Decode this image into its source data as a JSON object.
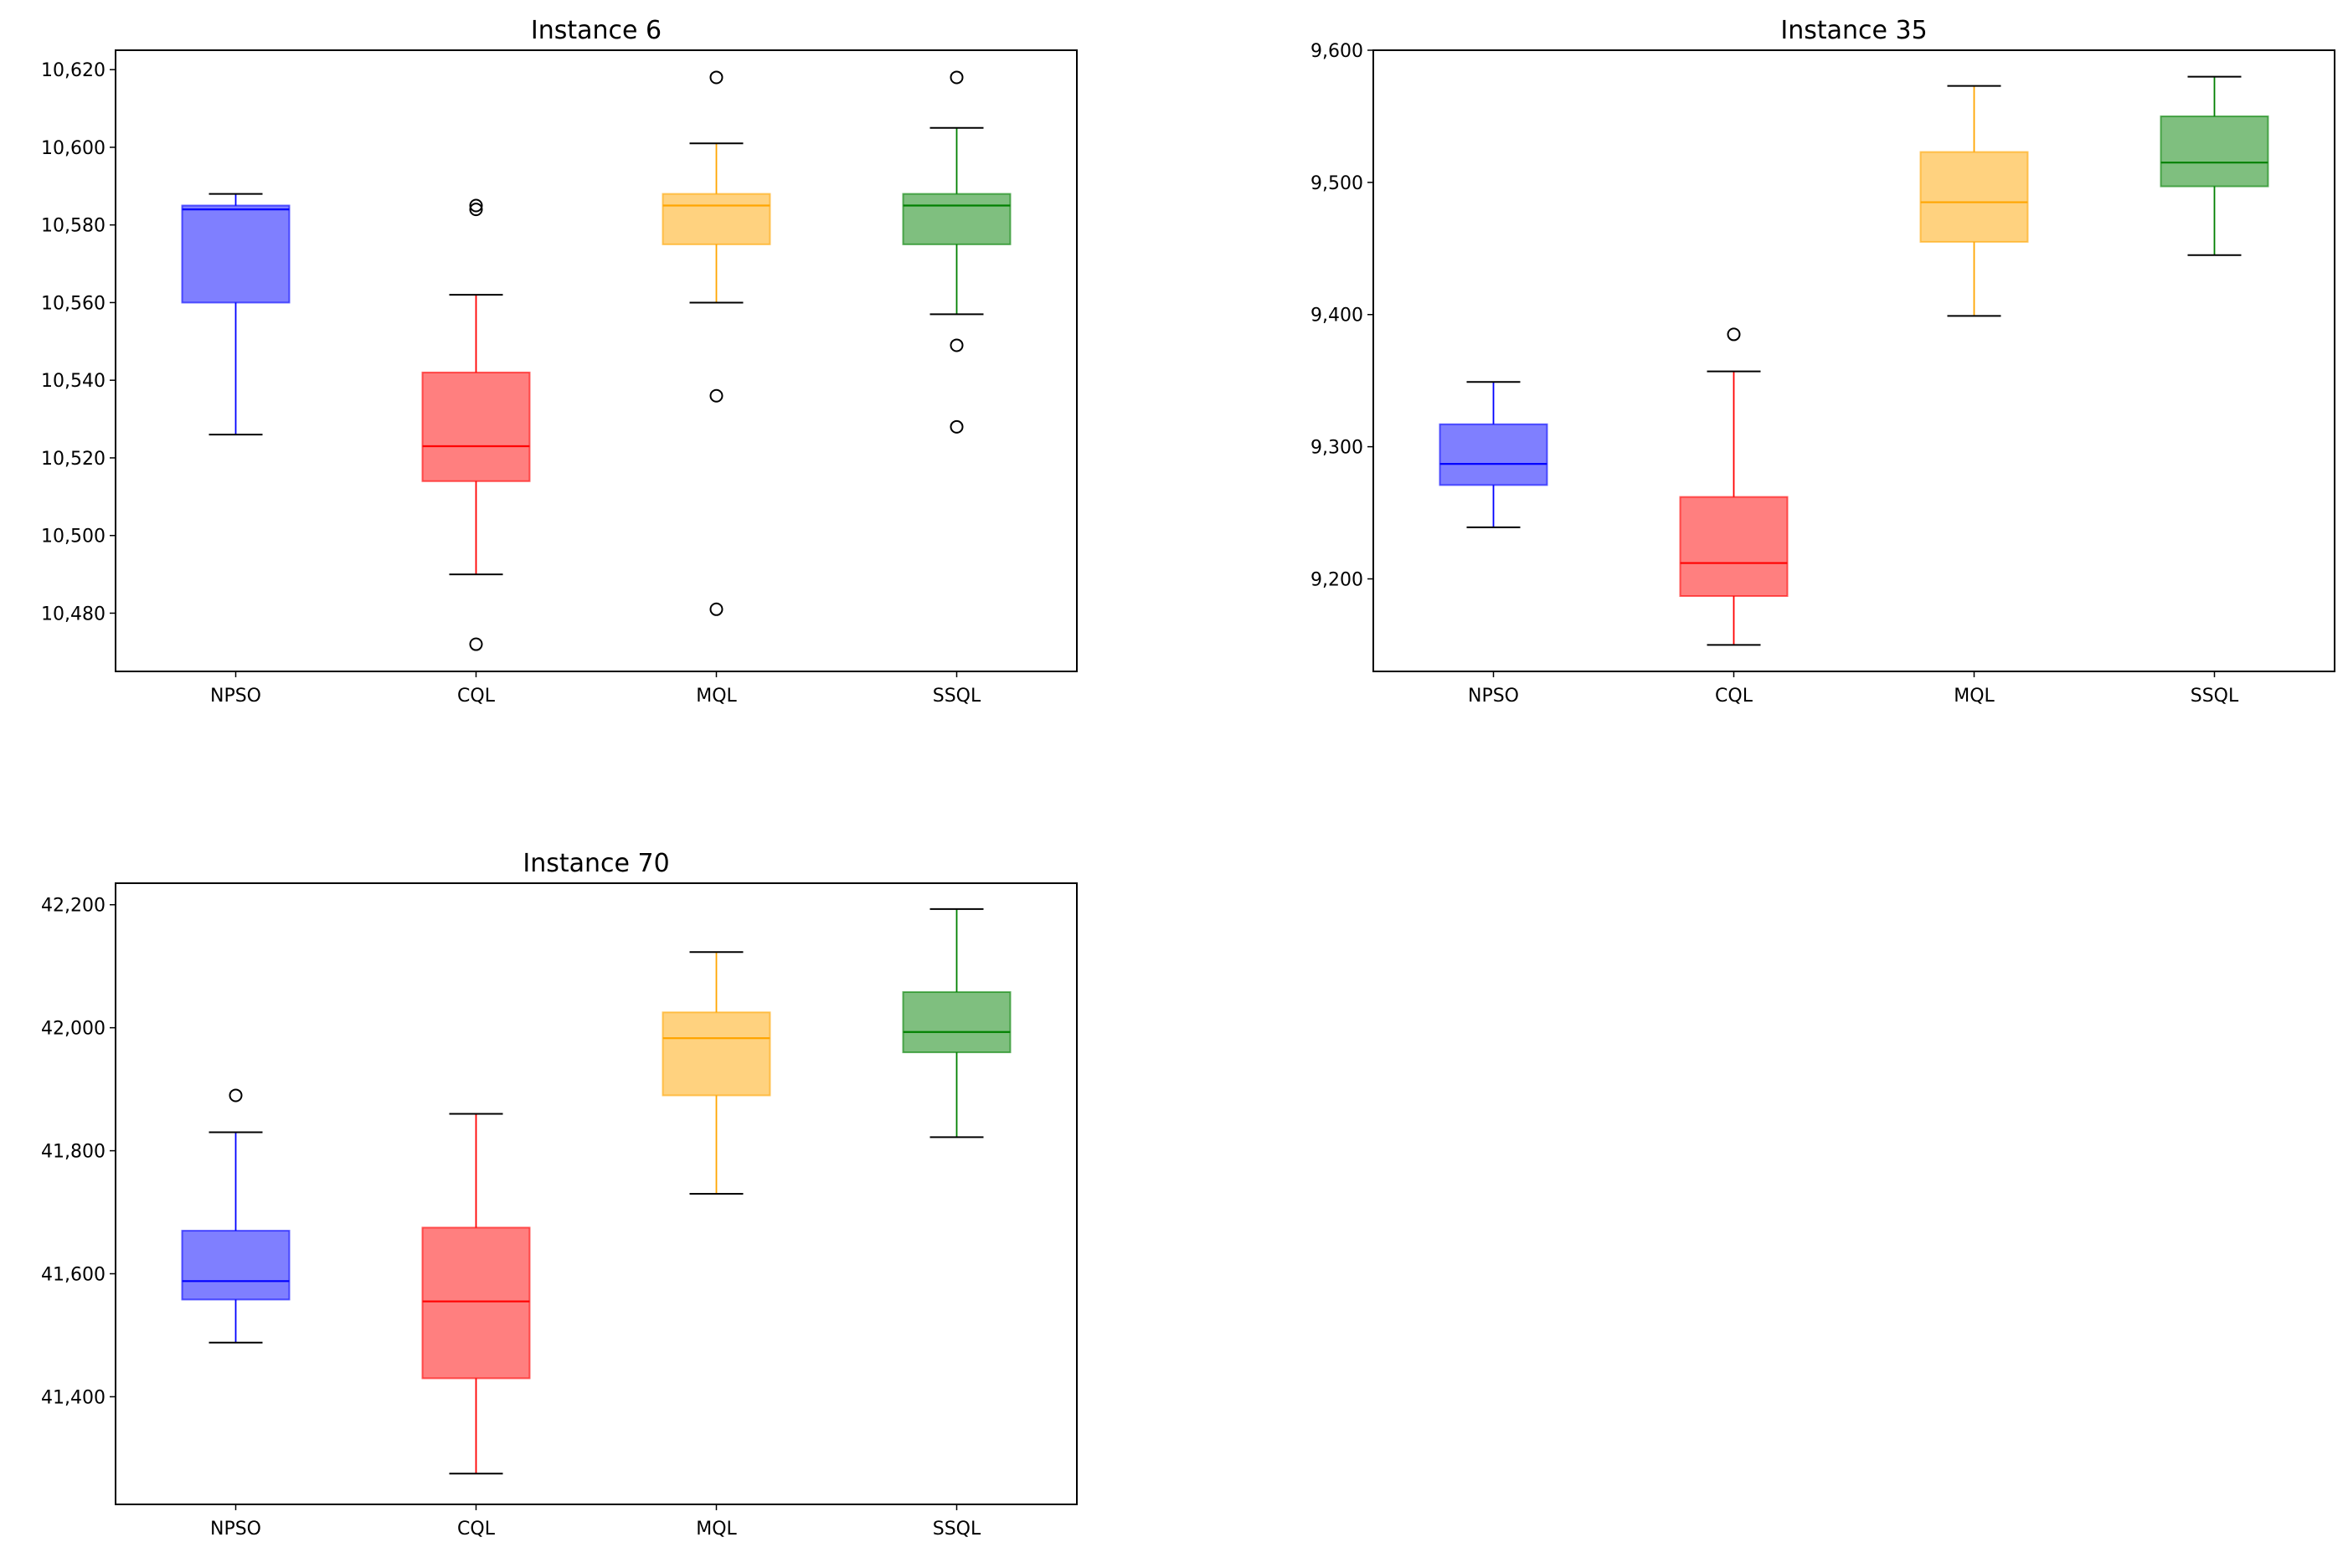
{
  "colors": {
    "NPSO": "#0000ff",
    "CQL": "#ff0000",
    "MQL": "#ffa500",
    "SSQL": "#008000"
  },
  "chart_data": [
    {
      "type": "boxplot",
      "title": "Instance 6",
      "categories": [
        "NPSO",
        "CQL",
        "MQL",
        "SSQL"
      ],
      "ylim": [
        10465,
        10625
      ],
      "yticks": [
        10480,
        10500,
        10520,
        10540,
        10560,
        10580,
        10600,
        10620
      ],
      "ytick_labels": [
        "10,480",
        "10,500",
        "10,520",
        "10,540",
        "10,560",
        "10,580",
        "10,600",
        "10,620"
      ],
      "boxes": [
        {
          "whisker_low": 10526,
          "q1": 10560,
          "median": 10584,
          "q3": 10585,
          "whisker_high": 10588,
          "outliers": []
        },
        {
          "whisker_low": 10490,
          "q1": 10514,
          "median": 10523,
          "q3": 10542,
          "whisker_high": 10562,
          "outliers": [
            10472,
            10584,
            10585
          ]
        },
        {
          "whisker_low": 10560,
          "q1": 10575,
          "median": 10585,
          "q3": 10588,
          "whisker_high": 10601,
          "outliers": [
            10481,
            10536,
            10618
          ]
        },
        {
          "whisker_low": 10557,
          "q1": 10575,
          "median": 10585,
          "q3": 10588,
          "whisker_high": 10605,
          "outliers": [
            10528,
            10549,
            10618
          ]
        }
      ]
    },
    {
      "type": "boxplot",
      "title": "Instance 35",
      "categories": [
        "NPSO",
        "CQL",
        "MQL",
        "SSQL"
      ],
      "ylim": [
        9130,
        9600
      ],
      "yticks": [
        9200,
        9300,
        9400,
        9500,
        9600
      ],
      "ytick_labels": [
        "9,200",
        "9,300",
        "9,400",
        "9,500",
        "9,600"
      ],
      "boxes": [
        {
          "whisker_low": 9239,
          "q1": 9271,
          "median": 9287,
          "q3": 9317,
          "whisker_high": 9349,
          "outliers": []
        },
        {
          "whisker_low": 9150,
          "q1": 9187,
          "median": 9212,
          "q3": 9262,
          "whisker_high": 9357,
          "outliers": [
            9385
          ]
        },
        {
          "whisker_low": 9399,
          "q1": 9455,
          "median": 9485,
          "q3": 9523,
          "whisker_high": 9573,
          "outliers": []
        },
        {
          "whisker_low": 9445,
          "q1": 9497,
          "median": 9515,
          "q3": 9550,
          "whisker_high": 9580,
          "outliers": []
        }
      ]
    },
    {
      "type": "boxplot",
      "title": "Instance 70",
      "categories": [
        "NPSO",
        "CQL",
        "MQL",
        "SSQL"
      ],
      "ylim": [
        41225,
        42235
      ],
      "yticks": [
        41400,
        41600,
        41800,
        42000,
        42200
      ],
      "ytick_labels": [
        "41,400",
        "41,600",
        "41,800",
        "42,000",
        "42,200"
      ],
      "boxes": [
        {
          "whisker_low": 41488,
          "q1": 41558,
          "median": 41588,
          "q3": 41670,
          "whisker_high": 41830,
          "outliers": [
            41890
          ]
        },
        {
          "whisker_low": 41275,
          "q1": 41430,
          "median": 41555,
          "q3": 41675,
          "whisker_high": 41860,
          "outliers": []
        },
        {
          "whisker_low": 41730,
          "q1": 41890,
          "median": 41983,
          "q3": 42025,
          "whisker_high": 42123,
          "outliers": []
        },
        {
          "whisker_low": 41822,
          "q1": 41960,
          "median": 41993,
          "q3": 42058,
          "whisker_high": 42193,
          "outliers": []
        }
      ]
    }
  ]
}
